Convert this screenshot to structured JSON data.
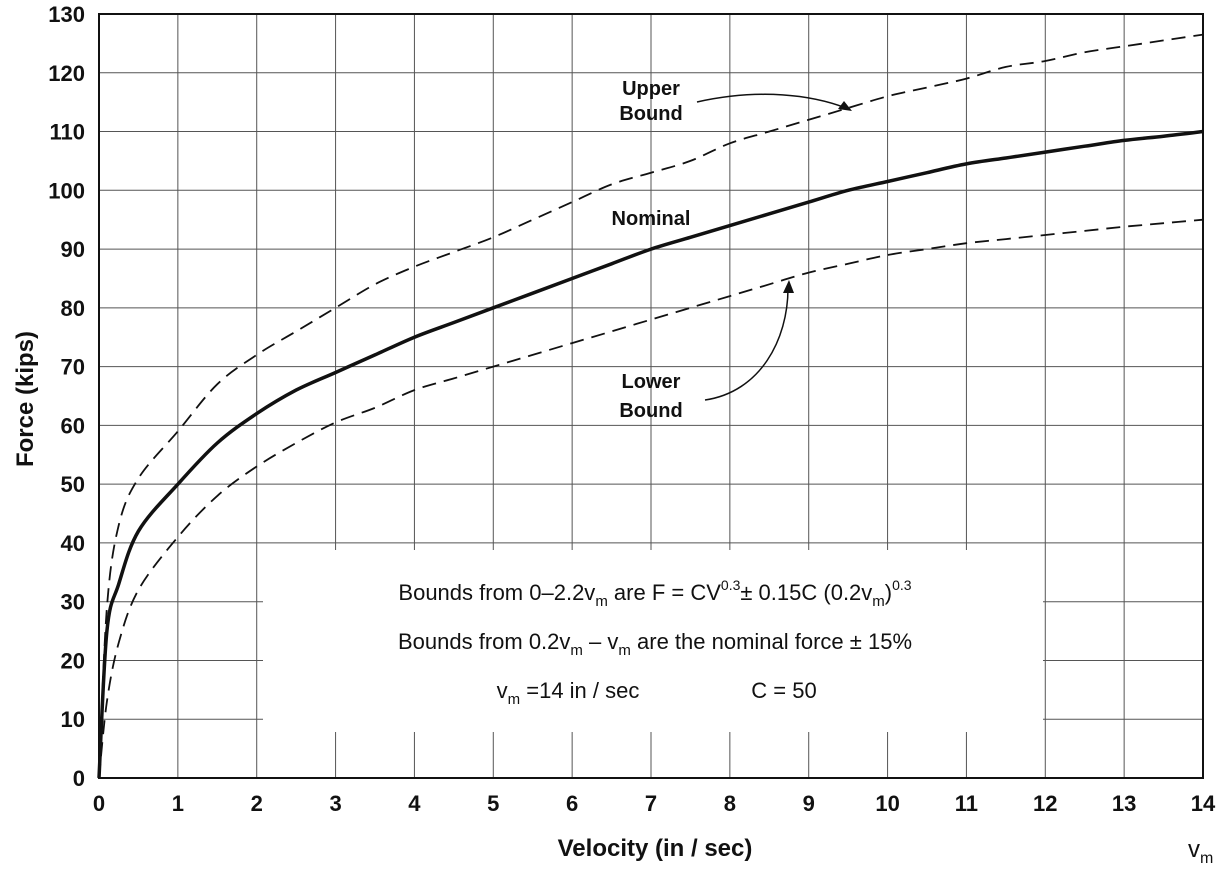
{
  "chart_data": {
    "type": "line",
    "xlabel": "Velocity (in / sec)",
    "ylabel": "Force (kips)",
    "x_end_label_main": "v",
    "x_end_label_sub": "m",
    "xlim": [
      0,
      14
    ],
    "ylim": [
      0,
      130
    ],
    "x_ticks": [
      0,
      1,
      2,
      3,
      4,
      5,
      6,
      7,
      8,
      9,
      10,
      11,
      12,
      13,
      14
    ],
    "y_ticks": [
      0,
      10,
      20,
      30,
      40,
      50,
      60,
      70,
      80,
      90,
      100,
      110,
      120,
      130
    ],
    "grid": true,
    "series": [
      {
        "name": "Upper Bound",
        "style": "dashed",
        "x": [
          0,
          0.1,
          0.25,
          0.5,
          1,
          1.5,
          2,
          2.5,
          3,
          3.5,
          4,
          4.5,
          5,
          5.5,
          6,
          6.5,
          7,
          7.5,
          8,
          8.5,
          9,
          9.5,
          10,
          10.5,
          11,
          11.5,
          12,
          12.5,
          13,
          13.5,
          14
        ],
        "y": [
          0,
          29,
          43,
          51,
          59,
          67,
          72,
          76,
          80,
          84,
          87,
          89.5,
          92,
          95,
          98,
          101,
          103,
          105,
          108,
          110,
          112,
          114,
          116,
          117.5,
          119,
          121,
          122,
          123.5,
          124.5,
          125.5,
          126.5
        ]
      },
      {
        "name": "Nominal",
        "style": "solid",
        "x": [
          0,
          0.1,
          0.25,
          0.5,
          1,
          1.5,
          2,
          2.5,
          3,
          3.5,
          4,
          4.5,
          5,
          5.5,
          6,
          6.5,
          7,
          7.5,
          8,
          8.5,
          9,
          9.5,
          10,
          10.5,
          11,
          11.5,
          12,
          12.5,
          13,
          13.5,
          14
        ],
        "y": [
          0,
          25,
          33,
          42,
          50,
          57,
          62,
          66,
          69,
          72,
          75,
          77.5,
          80,
          82.5,
          85,
          87.5,
          90,
          92,
          94,
          96,
          98,
          100,
          101.5,
          103,
          104.5,
          105.5,
          106.5,
          107.5,
          108.5,
          109.2,
          110
        ]
      },
      {
        "name": "Lower Bound",
        "style": "dashed",
        "x": [
          0,
          0.1,
          0.25,
          0.5,
          1,
          1.5,
          2,
          2.5,
          3,
          3.5,
          4,
          4.5,
          5,
          5.5,
          6,
          6.5,
          7,
          7.5,
          8,
          8.5,
          9,
          9.5,
          10,
          10.5,
          11,
          11.5,
          12,
          12.5,
          13,
          13.5,
          14
        ],
        "y": [
          0,
          13,
          23,
          32,
          41,
          48,
          53,
          57,
          60.5,
          63,
          66,
          68,
          70,
          72,
          74,
          76,
          78,
          80,
          82,
          84,
          86,
          87.5,
          89,
          90,
          91,
          91.7,
          92.4,
          93.1,
          93.8,
          94.4,
          95
        ]
      }
    ],
    "annotations": {
      "upper_line1": "Upper",
      "upper_line2": "Bound",
      "nominal": "Nominal",
      "lower_line1": "Lower",
      "lower_line2": "Bound"
    },
    "notes": {
      "line1_part1": "Bounds from 0–2.2v",
      "line1_sub1": "m",
      "line1_part2": " are F = CV",
      "line1_sup1": "0.3",
      "line1_part3": "± 0.15C (0.2v",
      "line1_sub2": "m",
      "line1_part4": ")",
      "line1_sup2": "0.3",
      "line2_part1": "Bounds from 0.2v",
      "line2_sub1": "m",
      "line2_part2": " – v",
      "line2_sub2": "m",
      "line2_part3": " are the nominal force  ± 15%",
      "line3_part1": "v",
      "line3_sub1": "m",
      "line3_part2": " =14 in / sec",
      "line3_part3": "C = 50"
    }
  }
}
